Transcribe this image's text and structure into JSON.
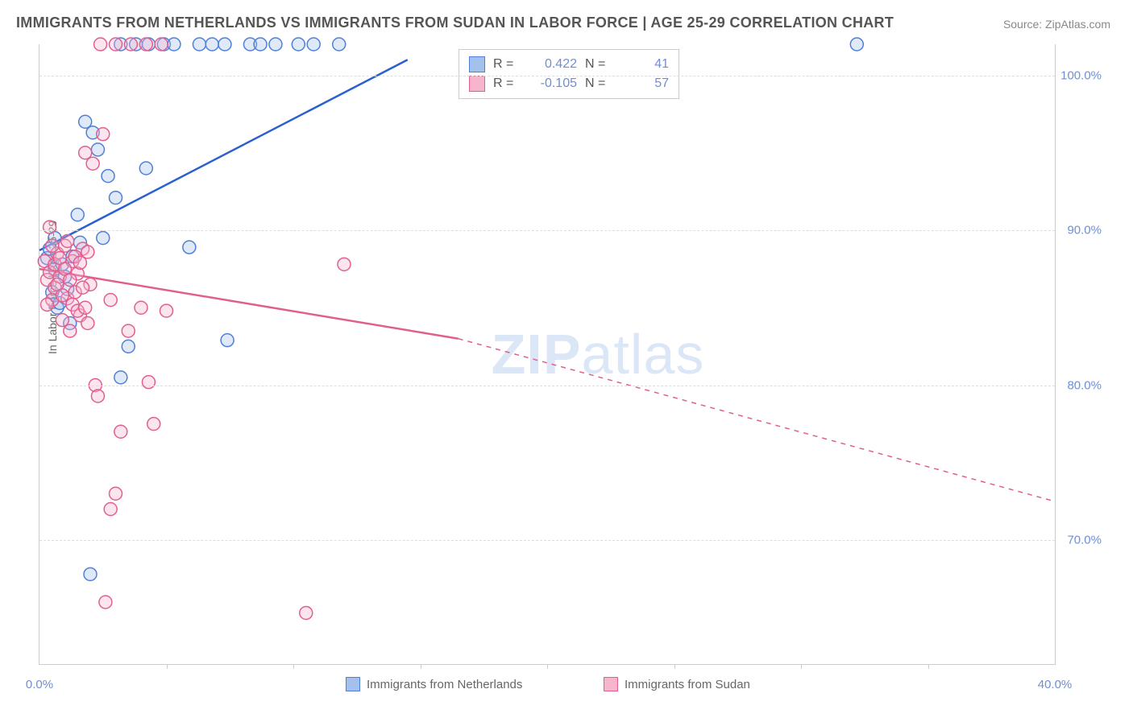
{
  "title": "IMMIGRANTS FROM NETHERLANDS VS IMMIGRANTS FROM SUDAN IN LABOR FORCE | AGE 25-29 CORRELATION CHART",
  "source_label": "Source: ZipAtlas.com",
  "watermark_text1": "ZIP",
  "watermark_text2": "atlas",
  "ylabel": "In Labor Force | Age 25-29",
  "chart": {
    "type": "scatter",
    "background_color": "#ffffff",
    "grid_color": "#dddddd",
    "axis_color": "#cccccc",
    "tick_label_color": "#6d8fd6",
    "text_color": "#666666",
    "xlim": [
      0,
      40
    ],
    "ylim": [
      62,
      102
    ],
    "xticks_major": [
      0,
      40
    ],
    "xticks_major_labels": [
      "0.0%",
      "40.0%"
    ],
    "xticks_minor": [
      5,
      10,
      15,
      20,
      25,
      30,
      35
    ],
    "yticks": [
      70,
      80,
      90,
      100
    ],
    "ytick_labels": [
      "70.0%",
      "80.0%",
      "90.0%",
      "100.0%"
    ],
    "marker_radius": 8,
    "marker_stroke_width": 1.5,
    "marker_fill_opacity": 0.35,
    "line_width": 2.5,
    "series": [
      {
        "name": "Immigrants from Netherlands",
        "color_stroke": "#4f7fd6",
        "color_fill": "#a3c1ec",
        "reg_line_color": "#2a5fd0",
        "R": "0.422",
        "N": "41",
        "points": [
          [
            0.3,
            88.2
          ],
          [
            0.5,
            86.0
          ],
          [
            0.6,
            87.5
          ],
          [
            0.7,
            85.0
          ],
          [
            0.9,
            87.8
          ],
          [
            1.0,
            87.0
          ],
          [
            1.2,
            84.0
          ],
          [
            1.5,
            91.0
          ],
          [
            1.6,
            89.2
          ],
          [
            1.8,
            97.0
          ],
          [
            2.1,
            96.3
          ],
          [
            2.5,
            89.5
          ],
          [
            3.0,
            92.1
          ],
          [
            3.2,
            80.5
          ],
          [
            3.5,
            82.5
          ],
          [
            2.0,
            67.8
          ],
          [
            3.2,
            102.0
          ],
          [
            3.8,
            102.0
          ],
          [
            4.3,
            102.0
          ],
          [
            4.9,
            102.0
          ],
          [
            5.3,
            102.0
          ],
          [
            5.9,
            88.9
          ],
          [
            6.3,
            102.0
          ],
          [
            6.8,
            102.0
          ],
          [
            7.3,
            102.0
          ],
          [
            7.4,
            82.9
          ],
          [
            8.3,
            102.0
          ],
          [
            8.7,
            102.0
          ],
          [
            9.3,
            102.0
          ],
          [
            10.2,
            102.0
          ],
          [
            10.8,
            102.0
          ],
          [
            11.8,
            102.0
          ],
          [
            4.2,
            94.0
          ],
          [
            2.3,
            95.2
          ],
          [
            0.4,
            88.8
          ],
          [
            1.1,
            86.2
          ],
          [
            0.8,
            85.3
          ],
          [
            32.2,
            102.0
          ],
          [
            1.3,
            88.3
          ],
          [
            0.6,
            89.5
          ],
          [
            2.7,
            93.5
          ]
        ],
        "reg_line": {
          "x1": 0,
          "y1": 88.7,
          "x2": 14.5,
          "y2": 101.0,
          "dashed_after": 14.5
        }
      },
      {
        "name": "Immigrants from Sudan",
        "color_stroke": "#e15f8f",
        "color_fill": "#f6b5cd",
        "reg_line_color": "#e15f8f",
        "R": "-0.105",
        "N": "57",
        "points": [
          [
            0.2,
            88.0
          ],
          [
            0.3,
            86.8
          ],
          [
            0.4,
            87.3
          ],
          [
            0.5,
            85.5
          ],
          [
            0.6,
            86.3
          ],
          [
            0.7,
            88.5
          ],
          [
            0.8,
            87.0
          ],
          [
            0.9,
            84.2
          ],
          [
            1.0,
            89.0
          ],
          [
            1.1,
            85.6
          ],
          [
            1.2,
            83.5
          ],
          [
            1.3,
            88.0
          ],
          [
            1.4,
            86.0
          ],
          [
            1.5,
            87.2
          ],
          [
            1.6,
            84.5
          ],
          [
            1.7,
            88.8
          ],
          [
            1.8,
            95.0
          ],
          [
            1.9,
            84.0
          ],
          [
            2.0,
            86.5
          ],
          [
            2.1,
            94.3
          ],
          [
            2.2,
            80.0
          ],
          [
            2.3,
            79.3
          ],
          [
            2.5,
            96.2
          ],
          [
            2.8,
            85.5
          ],
          [
            3.0,
            73.0
          ],
          [
            3.2,
            77.0
          ],
          [
            3.5,
            83.5
          ],
          [
            4.0,
            85.0
          ],
          [
            4.3,
            80.2
          ],
          [
            4.5,
            77.5
          ],
          [
            5.0,
            84.8
          ],
          [
            2.6,
            66.0
          ],
          [
            2.8,
            72.0
          ],
          [
            10.5,
            65.3
          ],
          [
            12.0,
            87.8
          ],
          [
            2.4,
            102.0
          ],
          [
            3.0,
            102.0
          ],
          [
            3.6,
            102.0
          ],
          [
            4.2,
            102.0
          ],
          [
            4.8,
            102.0
          ],
          [
            0.4,
            90.2
          ],
          [
            0.5,
            89.0
          ],
          [
            0.6,
            87.8
          ],
          [
            0.7,
            86.5
          ],
          [
            0.8,
            88.2
          ],
          [
            0.9,
            85.8
          ],
          [
            1.0,
            87.5
          ],
          [
            1.1,
            89.3
          ],
          [
            1.2,
            86.8
          ],
          [
            1.3,
            85.2
          ],
          [
            1.4,
            88.3
          ],
          [
            1.5,
            84.8
          ],
          [
            1.6,
            87.9
          ],
          [
            1.7,
            86.3
          ],
          [
            1.8,
            85.0
          ],
          [
            1.9,
            88.6
          ],
          [
            0.3,
            85.2
          ]
        ],
        "reg_line": {
          "x1": 0,
          "y1": 87.5,
          "x2": 16.5,
          "y2": 83.0,
          "dashed_after": 16.5,
          "x2_full": 40,
          "y2_full": 72.5
        }
      }
    ]
  },
  "legend_bottom": [
    {
      "label": "Immigrants from Netherlands",
      "stroke": "#4f7fd6",
      "fill": "#a3c1ec"
    },
    {
      "label": "Immigrants from Sudan",
      "stroke": "#e15f8f",
      "fill": "#f6b5cd"
    }
  ],
  "stat_box": {
    "rows": [
      {
        "stroke": "#4f7fd6",
        "fill": "#a3c1ec",
        "r_label": "R =",
        "r_val": "0.422",
        "n_label": "N =",
        "n_val": "41"
      },
      {
        "stroke": "#e15f8f",
        "fill": "#f6b5cd",
        "r_label": "R =",
        "r_val": "-0.105",
        "n_label": "N =",
        "n_val": "57"
      }
    ]
  }
}
